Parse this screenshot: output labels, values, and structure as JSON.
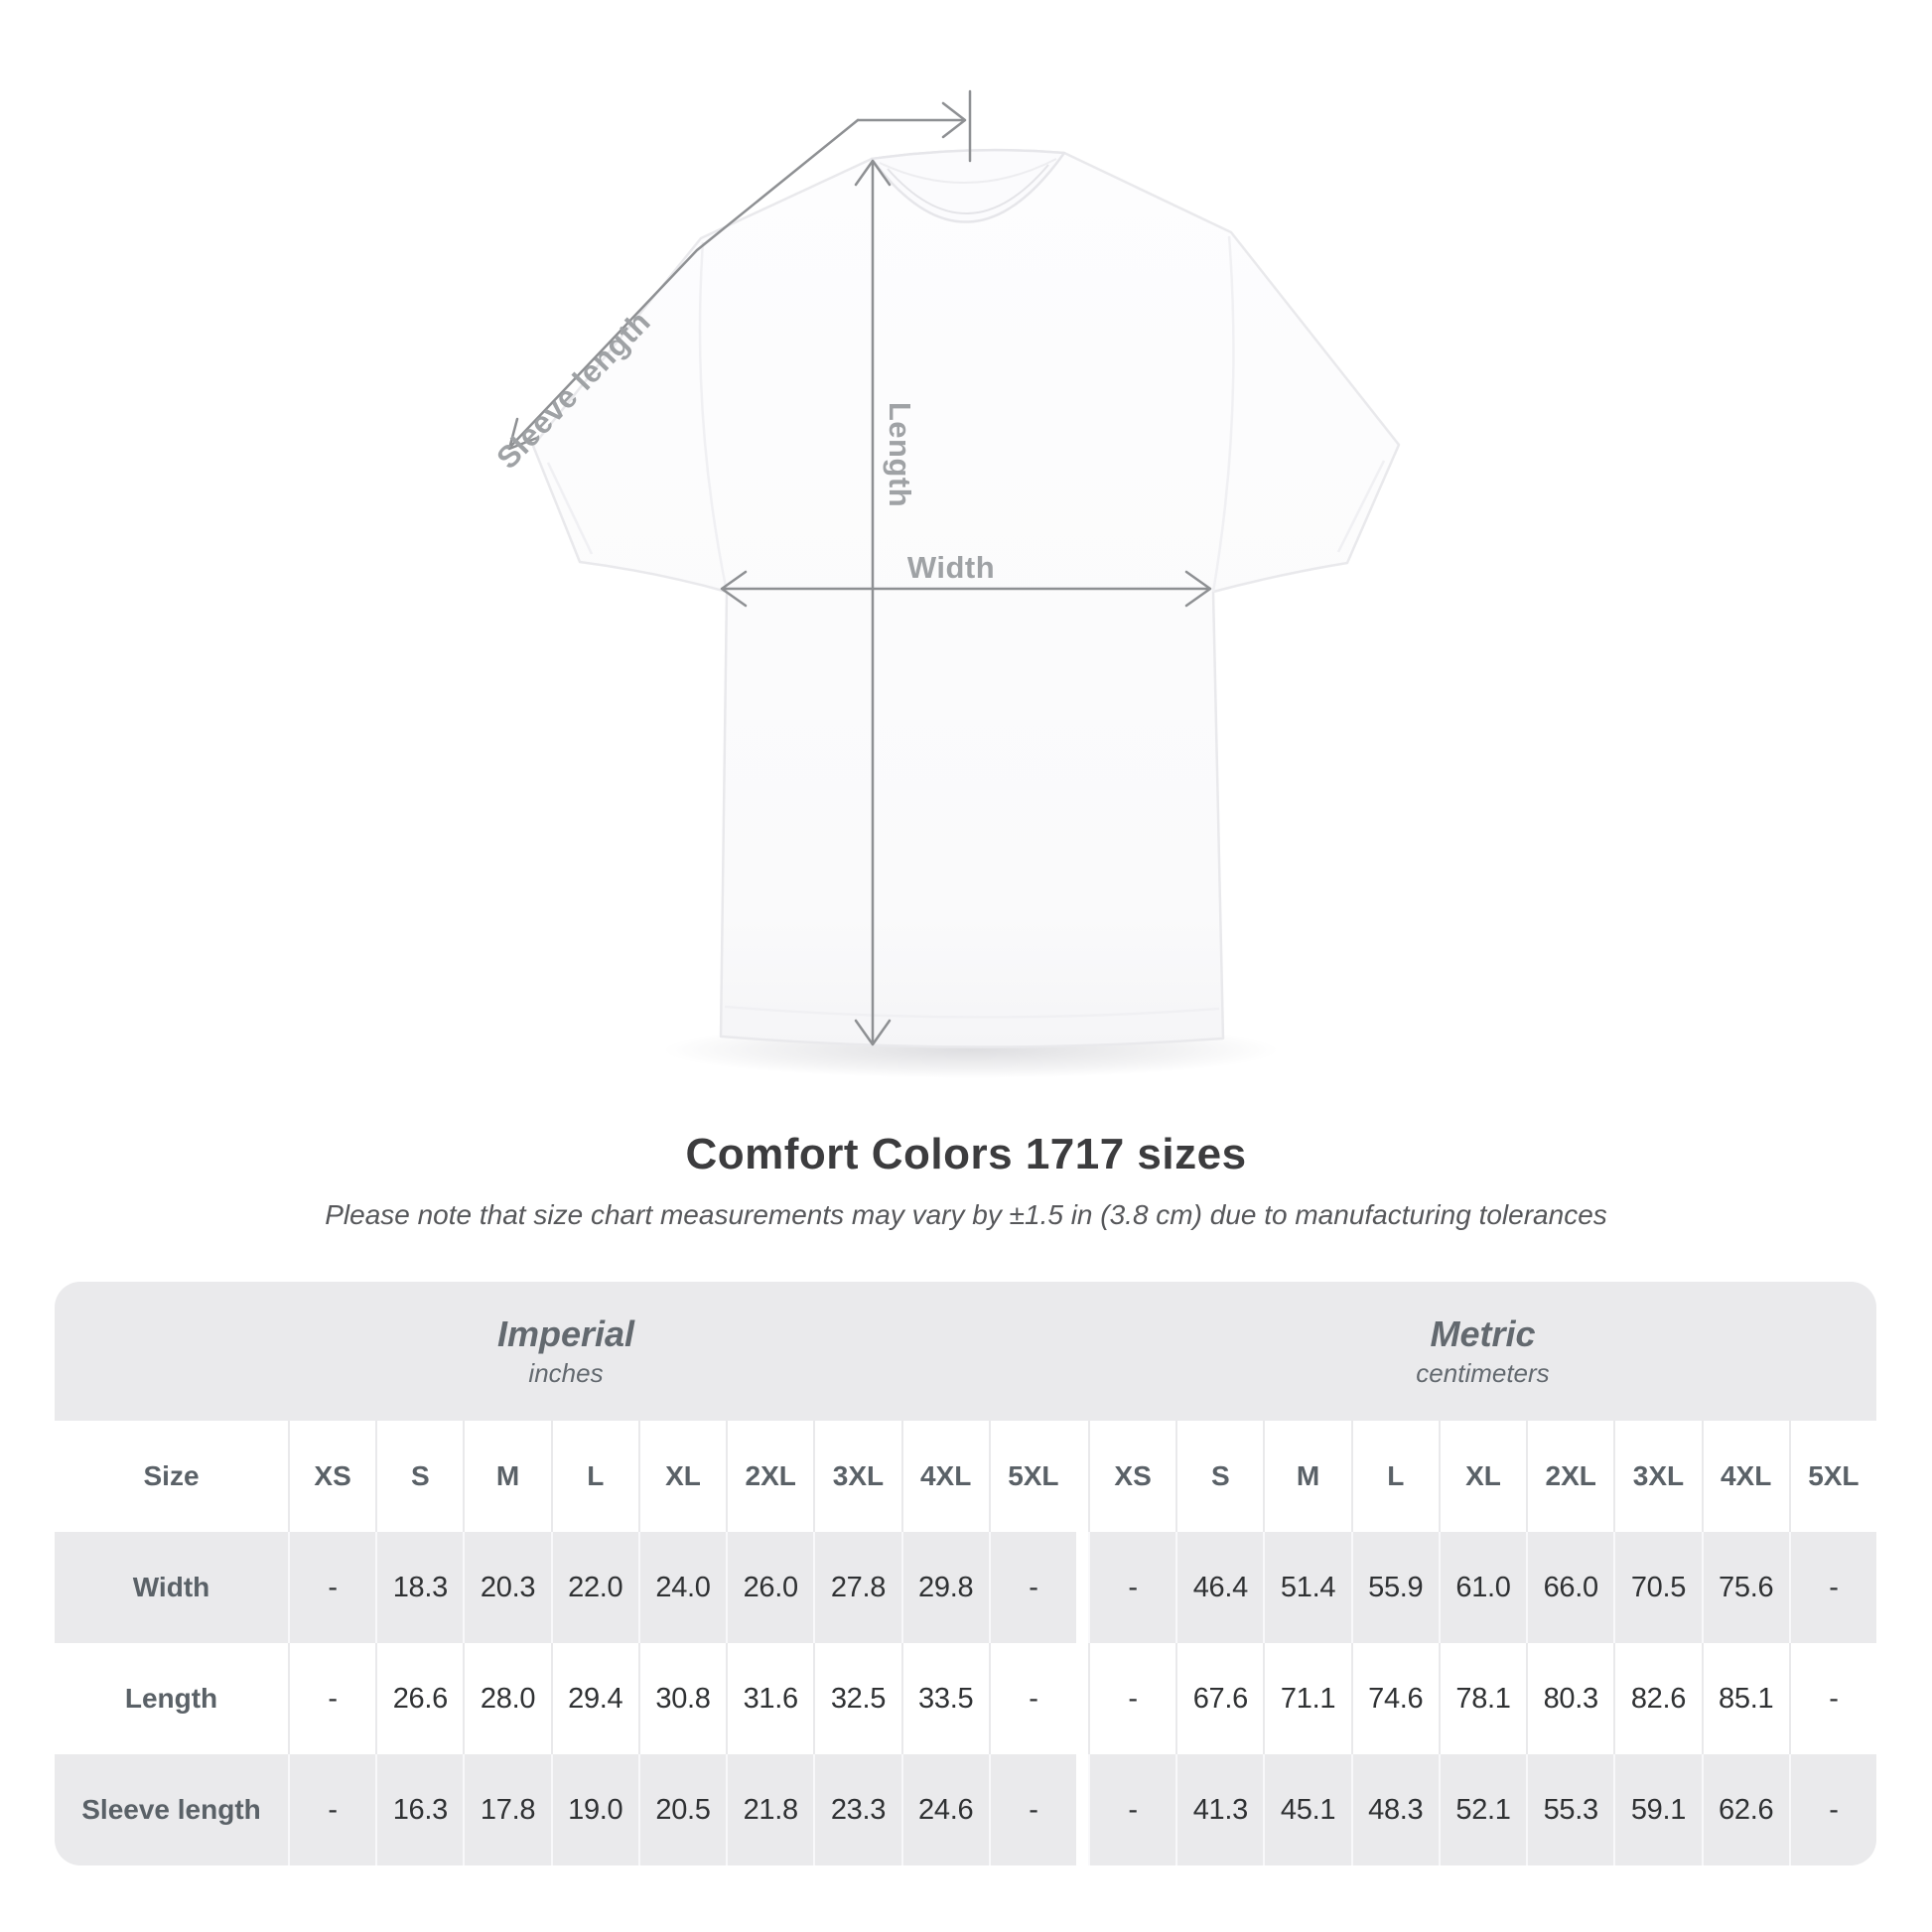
{
  "title": "Comfort Colors 1717 sizes",
  "subtitle": "Please note that size chart measurements may vary by ±1.5 in (3.8 cm) due to manufacturing tolerances",
  "diagram": {
    "sleeve_length_label": "Sleeve length",
    "length_label": "Length",
    "width_label": "Width"
  },
  "table": {
    "size_header": "Size",
    "groups": [
      {
        "label": "Imperial",
        "unit": "inches"
      },
      {
        "label": "Metric",
        "unit": "centimeters"
      }
    ],
    "sizes": [
      "XS",
      "S",
      "M",
      "L",
      "XL",
      "2XL",
      "3XL",
      "4XL",
      "5XL"
    ],
    "rows": [
      {
        "label": "Width",
        "imperial": [
          "-",
          "18.3",
          "20.3",
          "22.0",
          "24.0",
          "26.0",
          "27.8",
          "29.8",
          "-"
        ],
        "metric": [
          "-",
          "46.4",
          "51.4",
          "55.9",
          "61.0",
          "66.0",
          "70.5",
          "75.6",
          "-"
        ]
      },
      {
        "label": "Length",
        "imperial": [
          "-",
          "26.6",
          "28.0",
          "29.4",
          "30.8",
          "31.6",
          "32.5",
          "33.5",
          "-"
        ],
        "metric": [
          "-",
          "67.6",
          "71.1",
          "74.6",
          "78.1",
          "80.3",
          "82.6",
          "85.1",
          "-"
        ]
      },
      {
        "label": "Sleeve length",
        "imperial": [
          "-",
          "16.3",
          "17.8",
          "19.0",
          "20.5",
          "21.8",
          "23.3",
          "24.6",
          "-"
        ],
        "metric": [
          "-",
          "41.3",
          "45.1",
          "48.3",
          "52.1",
          "55.3",
          "59.1",
          "62.6",
          "-"
        ]
      }
    ]
  },
  "chart_data": {
    "type": "table",
    "title": "Comfort Colors 1717 sizes",
    "note": "Size chart measurements may vary by ±1.5 in (3.8 cm) due to manufacturing tolerances",
    "sizes": [
      "XS",
      "S",
      "M",
      "L",
      "XL",
      "2XL",
      "3XL",
      "4XL",
      "5XL"
    ],
    "series": [
      {
        "name": "Width",
        "unit": "in",
        "values": [
          null,
          18.3,
          20.3,
          22.0,
          24.0,
          26.0,
          27.8,
          29.8,
          null
        ]
      },
      {
        "name": "Length",
        "unit": "in",
        "values": [
          null,
          26.6,
          28.0,
          29.4,
          30.8,
          31.6,
          32.5,
          33.5,
          null
        ]
      },
      {
        "name": "Sleeve length",
        "unit": "in",
        "values": [
          null,
          16.3,
          17.8,
          19.0,
          20.5,
          21.8,
          23.3,
          24.6,
          null
        ]
      },
      {
        "name": "Width",
        "unit": "cm",
        "values": [
          null,
          46.4,
          51.4,
          55.9,
          61.0,
          66.0,
          70.5,
          75.6,
          null
        ]
      },
      {
        "name": "Length",
        "unit": "cm",
        "values": [
          null,
          67.6,
          71.1,
          74.6,
          78.1,
          80.3,
          82.6,
          85.1,
          null
        ]
      },
      {
        "name": "Sleeve length",
        "unit": "cm",
        "values": [
          null,
          41.3,
          45.1,
          48.3,
          52.1,
          55.3,
          59.1,
          62.6,
          null
        ]
      }
    ]
  },
  "colors": {
    "stripe_row": "#eaeaec",
    "header_band": "#eaeaec",
    "value_text": "#2f3133",
    "label_text": "#5a6167",
    "annotation_line": "#8e9093",
    "annotation_label": "#9fa2a5",
    "title_text": "#3c3c3e"
  }
}
